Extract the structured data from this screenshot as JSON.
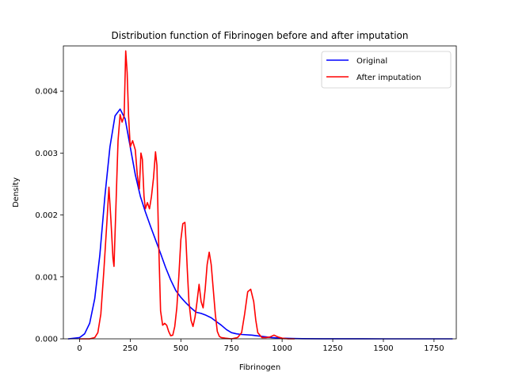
{
  "chart_data": {
    "type": "line",
    "title": "Distribution function of Fibrinogen before and after imputation",
    "xlabel": "Fibrinogen",
    "ylabel": "Density",
    "xlim": [
      -80,
      1860
    ],
    "ylim": [
      0,
      0.00473
    ],
    "x_ticks": [
      0,
      250,
      500,
      750,
      1000,
      1250,
      1500,
      1750
    ],
    "x_tick_labels": [
      "0",
      "250",
      "500",
      "750",
      "1000",
      "1250",
      "1500",
      "1750"
    ],
    "y_ticks": [
      0,
      0.001,
      0.002,
      0.003,
      0.004
    ],
    "y_tick_labels": [
      "0.000",
      "0.001",
      "0.002",
      "0.003",
      "0.004"
    ],
    "grid": false,
    "legend_position": "top-right",
    "series": [
      {
        "name": "Original",
        "color": "#0000ff",
        "x": [
          -55,
          0,
          25,
          50,
          75,
          100,
          125,
          150,
          175,
          200,
          225,
          250,
          275,
          300,
          325,
          350,
          375,
          400,
          425,
          450,
          475,
          500,
          525,
          550,
          575,
          600,
          625,
          650,
          675,
          700,
          725,
          750,
          775,
          800,
          850,
          900,
          950,
          1000,
          1050,
          1100,
          1200,
          1300,
          1400,
          1500,
          1600,
          1700,
          1840
        ],
        "y": [
          0,
          2e-05,
          8e-05,
          0.00025,
          0.00065,
          0.00135,
          0.0023,
          0.0031,
          0.0036,
          0.00371,
          0.00355,
          0.0031,
          0.00265,
          0.0023,
          0.00205,
          0.00182,
          0.0016,
          0.00138,
          0.00115,
          0.00095,
          0.00078,
          0.00067,
          0.00058,
          0.0005,
          0.00043,
          0.00041,
          0.00038,
          0.00034,
          0.00028,
          0.00022,
          0.00015,
          0.0001,
          8e-05,
          7e-05,
          6e-05,
          4e-05,
          2e-05,
          1e-05,
          5e-06,
          2e-06,
          1e-06,
          1e-06,
          1e-06,
          0,
          0,
          0,
          0
        ]
      },
      {
        "name": "After imputation",
        "color": "#ff0000",
        "x": [
          0,
          50,
          75,
          90,
          105,
          120,
          135,
          145,
          155,
          165,
          170,
          180,
          190,
          200,
          210,
          220,
          228,
          235,
          242,
          250,
          262,
          275,
          285,
          295,
          303,
          310,
          318,
          325,
          335,
          345,
          355,
          365,
          375,
          382,
          390,
          400,
          410,
          420,
          430,
          440,
          450,
          460,
          470,
          480,
          490,
          500,
          510,
          520,
          525,
          532,
          540,
          550,
          560,
          570,
          580,
          590,
          600,
          610,
          620,
          630,
          640,
          650,
          660,
          670,
          680,
          690,
          700,
          720,
          750,
          780,
          800,
          815,
          830,
          845,
          860,
          870,
          880,
          900,
          920,
          940,
          960,
          980,
          1000,
          1030,
          1060
        ],
        "y": [
          0,
          0,
          2e-05,
          0.0001,
          0.0004,
          0.0011,
          0.0019,
          0.00245,
          0.0019,
          0.0013,
          0.00117,
          0.0022,
          0.0032,
          0.00362,
          0.0035,
          0.0036,
          0.00465,
          0.0043,
          0.0036,
          0.0031,
          0.0032,
          0.00305,
          0.00265,
          0.00242,
          0.003,
          0.0029,
          0.0023,
          0.0021,
          0.0022,
          0.0021,
          0.0023,
          0.0026,
          0.00302,
          0.0028,
          0.0016,
          0.00045,
          0.00022,
          0.00025,
          0.00022,
          0.00012,
          5e-05,
          6e-05,
          0.0002,
          0.0005,
          0.001,
          0.0016,
          0.00186,
          0.00188,
          0.0016,
          0.0011,
          0.0006,
          0.0003,
          0.0002,
          0.00035,
          0.0006,
          0.00088,
          0.0006,
          0.0005,
          0.0008,
          0.0012,
          0.0014,
          0.0012,
          0.0008,
          0.0004,
          0.00012,
          4e-05,
          2e-05,
          1e-05,
          0,
          2e-05,
          0.0001,
          0.0004,
          0.00076,
          0.0008,
          0.0006,
          0.0003,
          0.0001,
          2e-05,
          2e-05,
          3e-05,
          6e-05,
          3e-05,
          1e-05,
          0,
          0
        ]
      }
    ]
  }
}
